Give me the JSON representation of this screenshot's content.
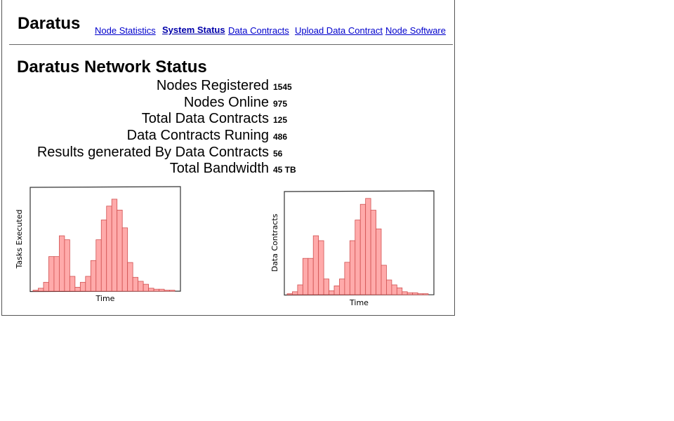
{
  "brand": "Daratus",
  "nav": {
    "node_statistics": "Node Statistics",
    "system_status": "System Status",
    "data_contracts": "Data Contracts",
    "upload_data_contract": "Upload Data Contract",
    "node_software": "Node Software"
  },
  "main": {
    "heading": "Daratus Network Status",
    "stats": [
      {
        "label": "Nodes Registered",
        "value": "1545"
      },
      {
        "label": "Nodes Online",
        "value": "975"
      },
      {
        "label": "Total Data Contracts",
        "value": "125"
      },
      {
        "label": "Data Contracts Runing",
        "value": "486"
      },
      {
        "label": "Results generated By Data Contracts",
        "value": "56"
      },
      {
        "label": "Total Bandwidth",
        "value": "45 TB"
      }
    ]
  },
  "colors": {
    "bar_fill": "#ffaaaa",
    "bar_stroke": "#d05050",
    "link": "#0000cc"
  },
  "chart_data": [
    {
      "type": "bar",
      "xlabel": "Time",
      "ylabel": "Tasks Executed",
      "values": [
        1,
        3,
        9,
        35,
        35,
        56,
        52,
        15,
        4,
        9,
        15,
        31,
        52,
        72,
        86,
        93,
        82,
        64,
        29,
        14,
        10,
        7,
        3,
        2,
        2,
        1,
        1
      ],
      "ylim": [
        0,
        100
      ]
    },
    {
      "type": "bar",
      "xlabel": "Time",
      "ylabel": "Data Contracts",
      "values": [
        1,
        3,
        10,
        37,
        37,
        60,
        55,
        16,
        4,
        9,
        16,
        33,
        55,
        76,
        92,
        98,
        86,
        67,
        30,
        15,
        10,
        7,
        3,
        2,
        2,
        1,
        1
      ],
      "ylim": [
        0,
        100
      ]
    }
  ]
}
